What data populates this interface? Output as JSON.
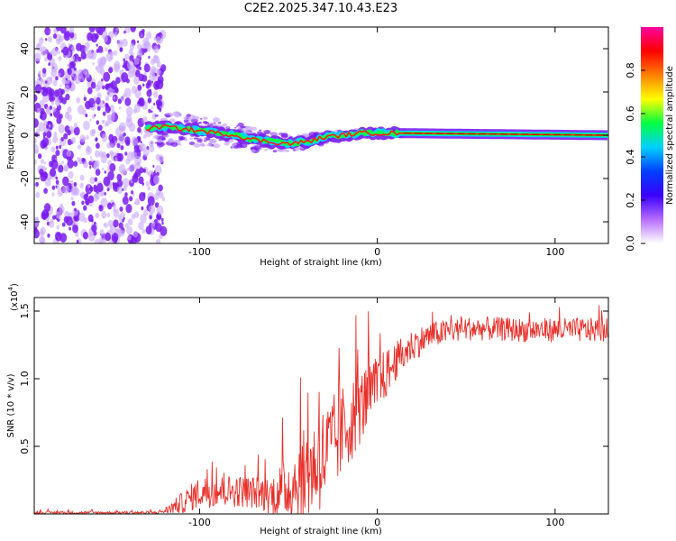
{
  "title": "C2E2.2025.347.10.43.E23",
  "colors": {
    "snr_line": "#e8302a",
    "ridge_center": "#ff1a1a",
    "ridge_mid": "#00ff40",
    "ridge_outer": "#00d0ff",
    "speckle": "#7a1cf0",
    "speckle_light": "#c9a8ff"
  },
  "chart_data": [
    {
      "type": "heatmap",
      "name": "spectrogram",
      "title": "",
      "xlabel": "Height of straight line (km)",
      "ylabel": "Frequency (Hz)",
      "xlim": [
        -193,
        130
      ],
      "ylim": [
        -50,
        50
      ],
      "xticks": [
        -100,
        0,
        100
      ],
      "yticks": [
        -40,
        -20,
        0,
        20,
        40
      ],
      "xtick_labels": [
        "-100",
        "0",
        "100"
      ],
      "ytick_labels": [
        "-40",
        "-20",
        "0",
        "20",
        "40"
      ],
      "ridge": {
        "x": [
          -130,
          -120,
          -110,
          -100,
          -90,
          -80,
          -70,
          -60,
          -50,
          -40,
          -30,
          -20,
          -10,
          0,
          10,
          130
        ],
        "frequency": [
          3,
          4,
          3,
          2,
          1,
          0,
          -2,
          -3,
          -4,
          -3,
          -1,
          0,
          1,
          1,
          1,
          0
        ]
      },
      "noise_region_x": [
        -193,
        -120
      ],
      "colorbar": {
        "label": "Normalized spectral amplitude",
        "range": [
          0,
          1
        ],
        "ticks": [
          0,
          0.2,
          0.4,
          0.6,
          0.8
        ],
        "tick_labels": [
          "0.0",
          "0.2",
          "0.4",
          "0.6",
          "0.8"
        ],
        "stops": [
          "#ffffff",
          "#b66cff",
          "#3a00ff",
          "#0040ff",
          "#00d0ff",
          "#00ff40",
          "#ffff00",
          "#ff8000",
          "#ff0000",
          "#ff00a0"
        ]
      }
    },
    {
      "type": "line",
      "name": "snr",
      "title": "",
      "xlabel": "Height of straight line (km)",
      "ylabel": "SNR (10 * v/v)",
      "scale_label": "(x10",
      "scale_exp": "4",
      "scale_close": ")",
      "xlim": [
        -193,
        130
      ],
      "ylim": [
        0,
        1.6
      ],
      "xticks": [
        -100,
        0,
        100
      ],
      "yticks": [
        0.5,
        1.0,
        1.5
      ],
      "xtick_labels": [
        "-100",
        "0",
        "100"
      ],
      "ytick_labels": [
        "0.5",
        "1.0",
        "1.5"
      ],
      "envelope": {
        "x": [
          -193,
          -125,
          -120,
          -110,
          -100,
          -90,
          -80,
          -70,
          -60,
          -50,
          -40,
          -30,
          -20,
          -10,
          0,
          10,
          20,
          30,
          40,
          50,
          60,
          80,
          100,
          130
        ],
        "mean": [
          0.01,
          0.01,
          0.02,
          0.08,
          0.16,
          0.17,
          0.17,
          0.16,
          0.14,
          0.2,
          0.3,
          0.42,
          0.6,
          0.78,
          0.95,
          1.12,
          1.25,
          1.32,
          1.35,
          1.37,
          1.37,
          1.36,
          1.36,
          1.36
        ],
        "amplitude": [
          0.01,
          0.01,
          0.02,
          0.08,
          0.12,
          0.12,
          0.12,
          0.12,
          0.14,
          0.25,
          0.35,
          0.4,
          0.35,
          0.28,
          0.22,
          0.15,
          0.12,
          0.1,
          0.09,
          0.09,
          0.09,
          0.09,
          0.09,
          0.09
        ]
      }
    }
  ]
}
